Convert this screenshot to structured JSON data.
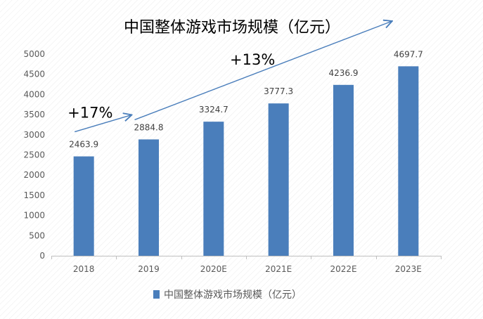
{
  "chart_data": {
    "type": "bar",
    "title": "中国整体游戏市场规模（亿元）",
    "categories": [
      "2018",
      "2019",
      "2020E",
      "2021E",
      "2022E",
      "2023E"
    ],
    "series": [
      {
        "name": "中国整体游戏市场规模（亿元）",
        "values": [
          2463.9,
          2884.8,
          3324.7,
          3777.3,
          4236.9,
          4697.7
        ]
      }
    ],
    "data_labels": [
      "2463.9",
      "2884.8",
      "3324.7",
      "3777.3",
      "4236.9",
      "4697.7"
    ],
    "ylim": [
      0,
      5000
    ],
    "y_ticks": [
      "0",
      "500",
      "1000",
      "1500",
      "2000",
      "2500",
      "3000",
      "3500",
      "4000",
      "4500",
      "5000"
    ],
    "xlabel": "",
    "ylabel": "",
    "grid": false,
    "legend_position": "bottom",
    "annotations": [
      {
        "text": "+17%",
        "from_category": "2018",
        "to_category": "2019"
      },
      {
        "text": "+13%",
        "from_category": "2019",
        "to_category": "2023E"
      }
    ],
    "colors": {
      "bar": "#4A7EBB",
      "arrow": "#4A7EBB",
      "axis": "#BFBFBF"
    }
  }
}
